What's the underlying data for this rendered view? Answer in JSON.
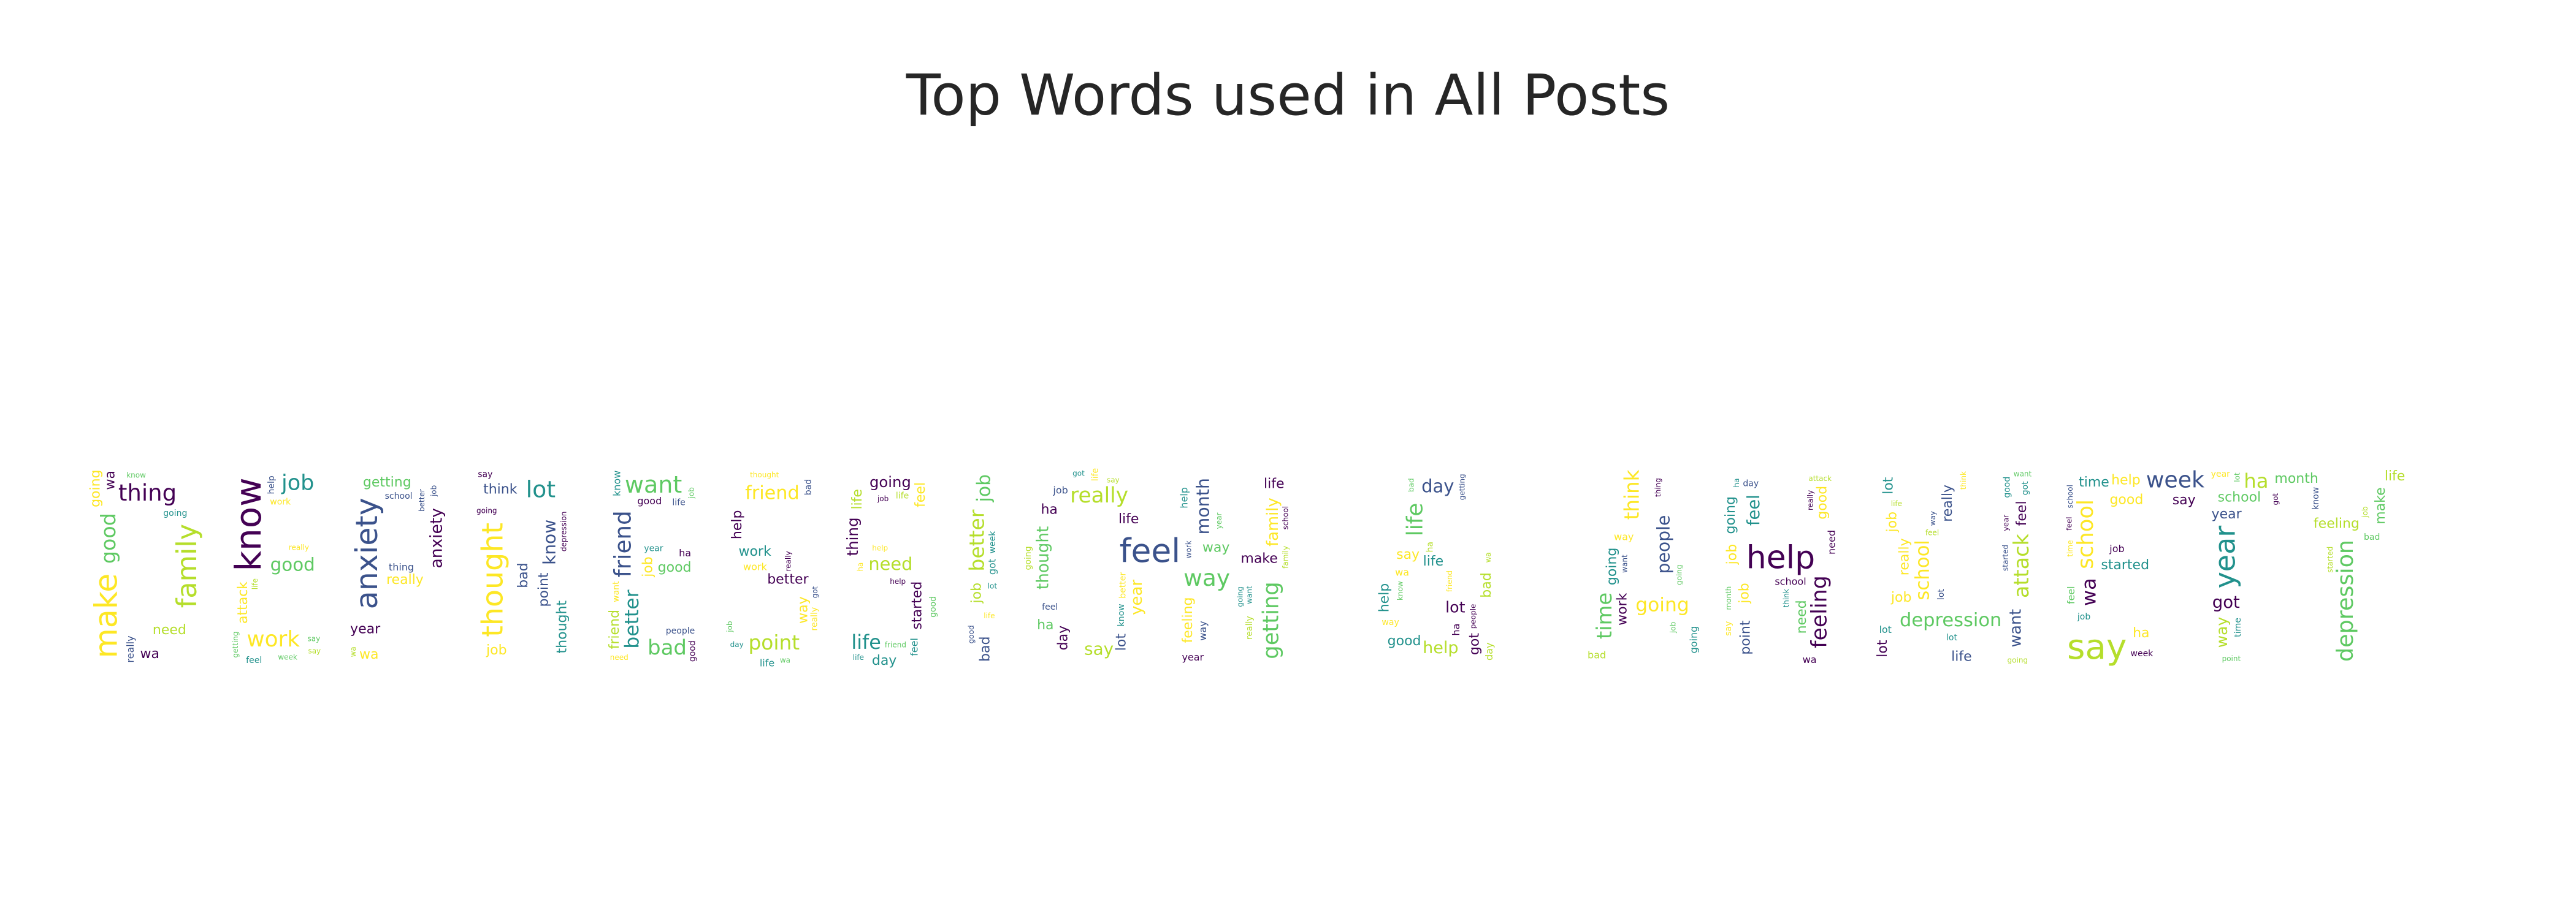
{
  "figure": {
    "title": "Top Words used in All Posts"
  },
  "cloud": {
    "mask_text": "DEPRESSION & ANXIETY",
    "colormap": [
      "#440154",
      "#3b528b",
      "#21918c",
      "#5ec962",
      "#b5de2b",
      "#fde725"
    ],
    "words": [
      "day",
      "need",
      "month",
      "people",
      "know",
      "say",
      "got",
      "feel",
      "help",
      "make",
      "anxiety",
      "thought",
      "year",
      "family",
      "want",
      "lot",
      "way",
      "friend",
      "thing",
      "going",
      "depression",
      "week",
      "life",
      "work",
      "school",
      "getting",
      "job",
      "feeling",
      "started",
      "really",
      "bad",
      "time",
      "attack",
      "good",
      "better",
      "point",
      "think",
      "ha",
      "wa",
      "life",
      "better",
      "going",
      "started",
      "school",
      "depression",
      "friend",
      "really",
      "job",
      "thought",
      "good"
    ]
  }
}
